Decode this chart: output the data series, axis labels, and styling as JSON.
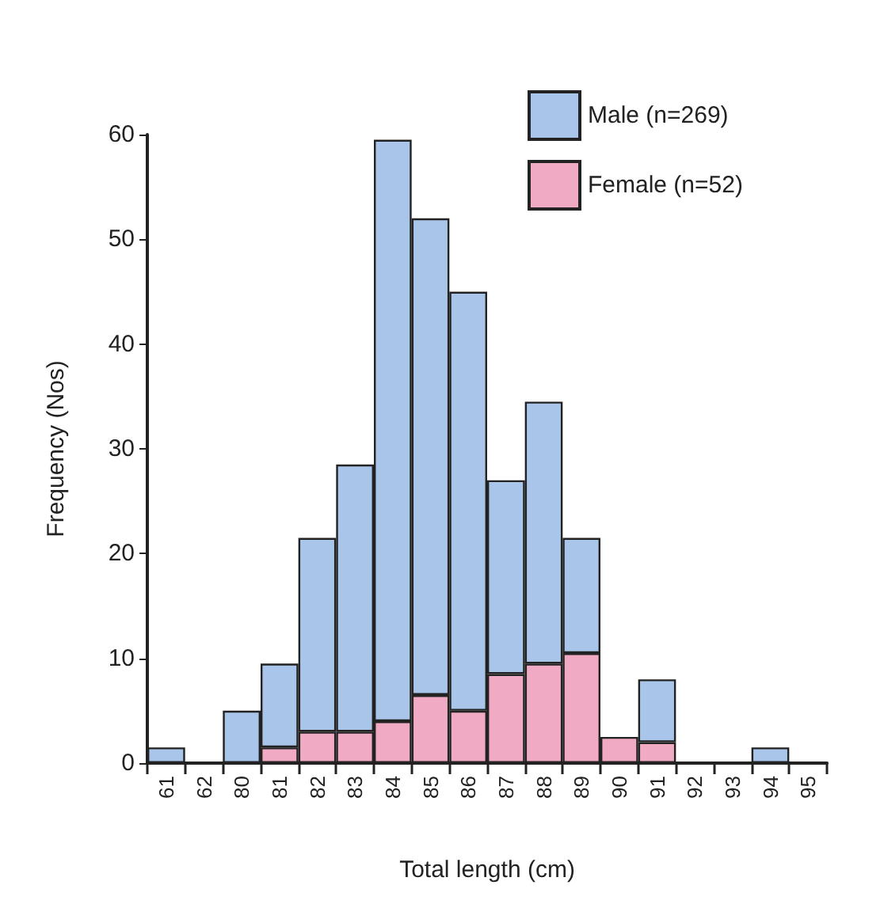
{
  "chart_data": {
    "type": "bar",
    "stacked": true,
    "xlabel": "Total length (cm)",
    "ylabel": "Frequency (Nos)",
    "categories": [
      "61",
      "62",
      "80",
      "81",
      "82",
      "83",
      "84",
      "85",
      "86",
      "87",
      "88",
      "89",
      "90",
      "91",
      "92",
      "93",
      "94",
      "95"
    ],
    "series": [
      {
        "name": "Female (n=52)",
        "color": "#f0aac3",
        "values": [
          0,
          0,
          0,
          1.5,
          3,
          3,
          4,
          6.5,
          5,
          8.5,
          9.5,
          10.5,
          2.5,
          2,
          0,
          0,
          0,
          0
        ]
      },
      {
        "name": "Male (n=269)",
        "color": "#a9c6ea",
        "values": [
          1.5,
          0,
          5,
          8,
          18.5,
          25.5,
          55.5,
          45.5,
          40,
          18.5,
          25,
          11,
          0,
          6,
          0,
          0,
          1.5,
          0
        ]
      }
    ],
    "ylim": [
      0,
      60
    ],
    "yticks": [
      0,
      10,
      20,
      30,
      40,
      50,
      60
    ],
    "grid": false,
    "legend": "top right"
  }
}
